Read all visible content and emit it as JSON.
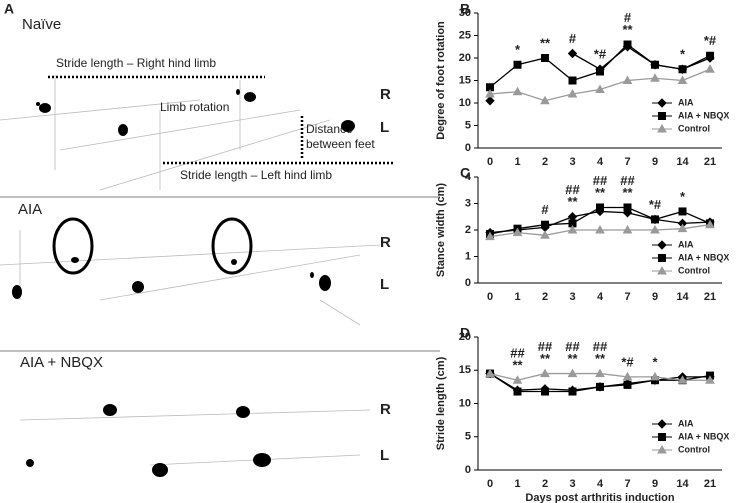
{
  "panel_a": {
    "label": "A",
    "naive": {
      "title": "Naïve",
      "stride_right": "Stride length – Right hind limb",
      "limb_rotation": "Limb rotation",
      "distance": [
        "Distance",
        "between feet"
      ],
      "stride_left": "Stride length – Left hind limb",
      "right": "R",
      "left": "L"
    },
    "aia": {
      "title": "AIA",
      "right": "R",
      "left": "L"
    },
    "nbqx": {
      "title": "AIA + NBQX",
      "right": "R",
      "left": "L"
    }
  },
  "chart_data": [
    {
      "type": "line",
      "panel": "B",
      "ylabel": "Degree of foot rotation",
      "categories": [
        "0",
        "1",
        "2",
        "3",
        "4",
        "7",
        "9",
        "14",
        "21"
      ],
      "ylim": [
        0,
        30
      ],
      "yticks": [
        0,
        5,
        10,
        15,
        20,
        25,
        30
      ],
      "annotations": [
        null,
        "*",
        "**",
        "#",
        "*#",
        [
          "#",
          "**"
        ],
        null,
        "*",
        "*#"
      ],
      "series": [
        {
          "name": "AIA",
          "color": "#000000",
          "marker": "diamond",
          "values": [
            10.5,
            null,
            null,
            21,
            17.5,
            22.5,
            18.5,
            17.5,
            20
          ]
        },
        {
          "name": "AIA + NBQX",
          "color": "#000000",
          "marker": "square",
          "values": [
            13.5,
            18.5,
            20,
            15,
            17,
            23,
            18.5,
            17.5,
            20.5
          ]
        },
        {
          "name": "Control",
          "color": "#9a9a9a",
          "marker": "triangle",
          "values": [
            12,
            12.5,
            10.5,
            12,
            13,
            15,
            15.5,
            15,
            17.5
          ]
        }
      ]
    },
    {
      "type": "line",
      "panel": "C",
      "ylabel": "Stance width (cm)",
      "categories": [
        "0",
        "1",
        "2",
        "3",
        "4",
        "7",
        "9",
        "14",
        "21"
      ],
      "ylim": [
        0,
        4
      ],
      "yticks": [
        0,
        1,
        2,
        3,
        4
      ],
      "annotations": [
        null,
        null,
        "#",
        [
          "##",
          "**"
        ],
        [
          "##",
          "**"
        ],
        [
          "##",
          "**"
        ],
        "*#",
        "*",
        null
      ],
      "series": [
        {
          "name": "AIA",
          "color": "#000000",
          "marker": "diamond",
          "values": [
            1.9,
            2.0,
            2.1,
            2.5,
            2.7,
            2.65,
            2.4,
            2.25,
            2.3
          ]
        },
        {
          "name": "AIA + NBQX",
          "color": "#000000",
          "marker": "square",
          "values": [
            1.85,
            2.05,
            2.2,
            2.25,
            2.85,
            2.85,
            2.4,
            2.7,
            2.25
          ]
        },
        {
          "name": "Control",
          "color": "#9a9a9a",
          "marker": "triangle",
          "values": [
            1.75,
            1.9,
            1.8,
            2.0,
            2.0,
            2.0,
            2.0,
            2.05,
            2.2
          ]
        }
      ]
    },
    {
      "type": "line",
      "panel": "D",
      "ylabel": "Stride length (cm)",
      "xlabel": "Days post arthritis induction",
      "categories": [
        "0",
        "1",
        "2",
        "3",
        "4",
        "7",
        "9",
        "14",
        "21"
      ],
      "ylim": [
        0,
        20
      ],
      "yticks": [
        0,
        5,
        10,
        15,
        20
      ],
      "annotations": [
        null,
        [
          "##",
          "**"
        ],
        [
          "##",
          "**"
        ],
        [
          "##",
          "**"
        ],
        [
          "##",
          "**"
        ],
        "*#",
        "*",
        null,
        null
      ],
      "series": [
        {
          "name": "AIA",
          "color": "#000000",
          "marker": "diamond",
          "values": [
            14.5,
            12,
            12.2,
            12,
            12.5,
            13,
            13.5,
            14,
            14
          ]
        },
        {
          "name": "AIA + NBQX",
          "color": "#000000",
          "marker": "square",
          "values": [
            14.5,
            11.8,
            11.8,
            11.8,
            12.5,
            12.8,
            13.5,
            13.5,
            14.2
          ]
        },
        {
          "name": "Control",
          "color": "#9a9a9a",
          "marker": "triangle",
          "values": [
            14.5,
            13.5,
            14.5,
            14.5,
            14.5,
            14,
            14,
            13.5,
            13.5
          ]
        }
      ]
    }
  ]
}
